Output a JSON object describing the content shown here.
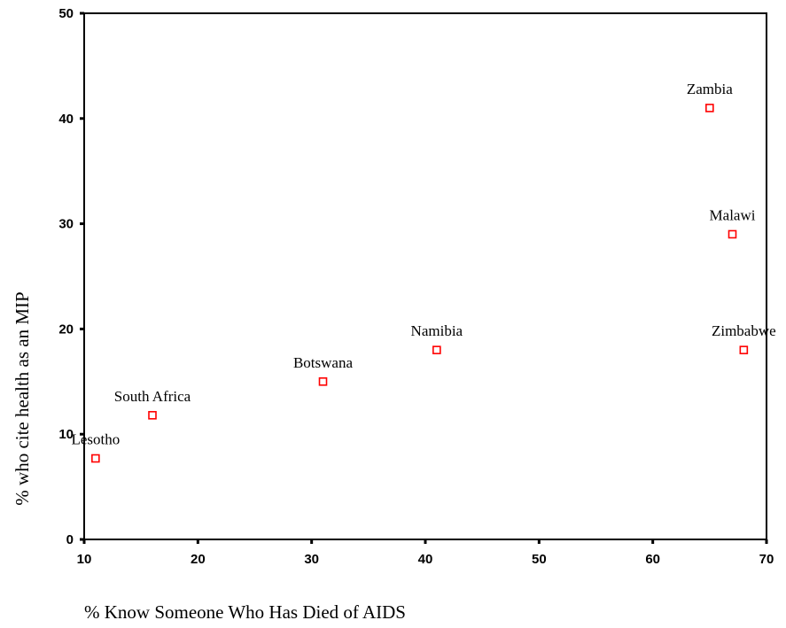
{
  "chart_data": {
    "type": "scatter",
    "xlabel": "% Know Someone Who Has Died of AIDS",
    "ylabel": "% who cite health as an MIP",
    "xlim": [
      10,
      70
    ],
    "ylim": [
      0,
      50
    ],
    "xticks": [
      10,
      20,
      30,
      40,
      50,
      60,
      70
    ],
    "yticks": [
      0,
      10,
      20,
      30,
      40,
      50
    ],
    "grid": false,
    "marker_color": "#ff0000",
    "points": [
      {
        "label": "Lesotho",
        "x": 11,
        "y": 7.7
      },
      {
        "label": "South Africa",
        "x": 16,
        "y": 11.8
      },
      {
        "label": "Botswana",
        "x": 31,
        "y": 15
      },
      {
        "label": "Namibia",
        "x": 41,
        "y": 18
      },
      {
        "label": "Zambia",
        "x": 65,
        "y": 41
      },
      {
        "label": "Malawi",
        "x": 67,
        "y": 29
      },
      {
        "label": "Zimbabwe",
        "x": 68,
        "y": 18
      }
    ]
  }
}
